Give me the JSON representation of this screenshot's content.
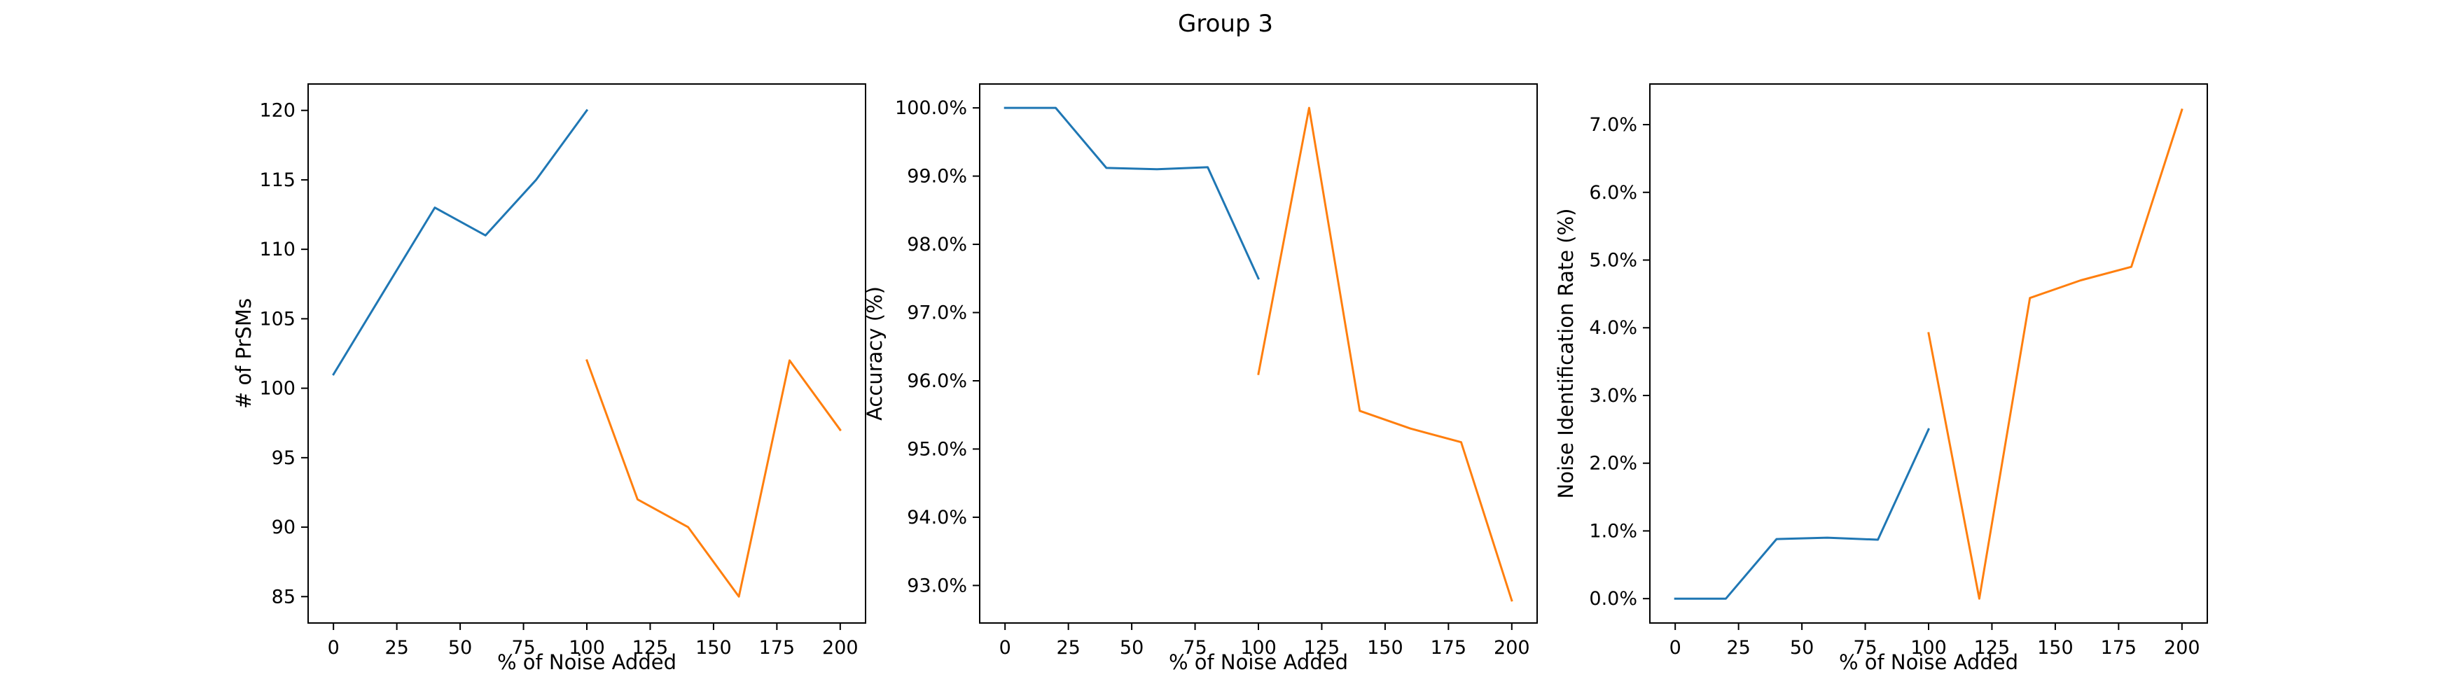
{
  "figure": {
    "title": "Group 3"
  },
  "colors": {
    "series1": "#1f77b4",
    "series2": "#ff7f0e",
    "axes": "#000000",
    "background": "#ffffff"
  },
  "chart_data": [
    {
      "type": "line",
      "xlabel": "% of Noise Added",
      "ylabel": "# of PrSMs",
      "xlim": [
        -10,
        210
      ],
      "ylim": [
        83.1,
        121.9
      ],
      "xticks": [
        0,
        25,
        50,
        75,
        100,
        125,
        150,
        175,
        200
      ],
      "yticks": [
        85,
        90,
        95,
        100,
        105,
        110,
        115,
        120
      ],
      "ytick_format": "int",
      "grid": false,
      "series": [
        {
          "color": "#1f77b4",
          "x": [
            0,
            20,
            40,
            60,
            80,
            100
          ],
          "y": [
            101,
            107,
            113,
            111,
            115,
            120
          ]
        },
        {
          "color": "#ff7f0e",
          "x": [
            100,
            120,
            140,
            160,
            180,
            200
          ],
          "y": [
            102,
            92,
            90,
            85,
            102,
            97
          ]
        }
      ]
    },
    {
      "type": "line",
      "xlabel": "% of Noise Added",
      "ylabel": "Accuracy (%)",
      "xlim": [
        -10,
        210
      ],
      "ylim": [
        92.45,
        100.35
      ],
      "xticks": [
        0,
        25,
        50,
        75,
        100,
        125,
        150,
        175,
        200
      ],
      "yticks": [
        93,
        94,
        95,
        96,
        97,
        98,
        99,
        100
      ],
      "ytick_format": "pct1",
      "grid": false,
      "series": [
        {
          "color": "#1f77b4",
          "x": [
            0,
            20,
            40,
            60,
            80,
            100
          ],
          "y": [
            100.0,
            100.0,
            99.12,
            99.1,
            99.13,
            97.5
          ]
        },
        {
          "color": "#ff7f0e",
          "x": [
            100,
            120,
            140,
            160,
            180,
            200
          ],
          "y": [
            96.1,
            100.0,
            95.56,
            95.3,
            95.1,
            92.78
          ]
        }
      ]
    },
    {
      "type": "line",
      "xlabel": "% of Noise Added",
      "ylabel": "Noise Identification Rate (%)",
      "xlim": [
        -10,
        210
      ],
      "ylim": [
        -0.36,
        7.6
      ],
      "xticks": [
        0,
        25,
        50,
        75,
        100,
        125,
        150,
        175,
        200
      ],
      "yticks": [
        0,
        1,
        2,
        3,
        4,
        5,
        6,
        7
      ],
      "ytick_format": "pct1",
      "grid": false,
      "series": [
        {
          "color": "#1f77b4",
          "x": [
            0,
            20,
            40,
            60,
            80,
            100
          ],
          "y": [
            0.0,
            0.0,
            0.88,
            0.9,
            0.87,
            2.5
          ]
        },
        {
          "color": "#ff7f0e",
          "x": [
            100,
            120,
            140,
            160,
            180,
            200
          ],
          "y": [
            3.92,
            0.0,
            4.44,
            4.7,
            4.9,
            7.22
          ]
        }
      ]
    }
  ]
}
